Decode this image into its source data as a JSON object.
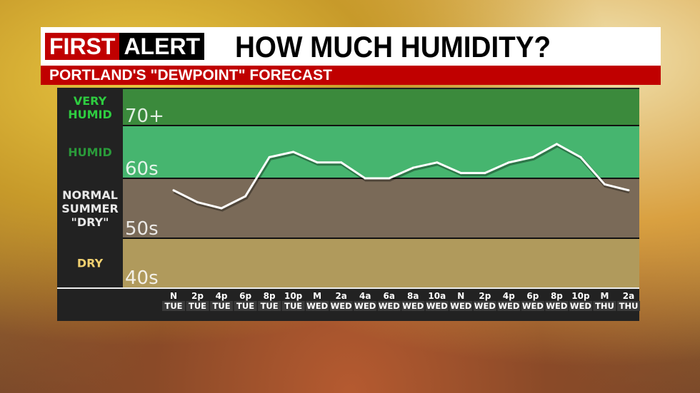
{
  "header": {
    "logo_first": "FIRST",
    "logo_alert": "ALERT",
    "title": "HOW MUCH HUMIDITY?",
    "subtitle": "PORTLAND'S \"DEWPOINT\" FORECAST"
  },
  "colors": {
    "very_humid": "#3b8a3c",
    "humid": "#46b56f",
    "normal": "#7a6a58",
    "dry": "#b09a5c",
    "line": "#ffffff",
    "red": "#c00000"
  },
  "chart_data": {
    "type": "line",
    "title": "HOW MUCH HUMIDITY?",
    "ylabel": "",
    "bands": [
      {
        "category": "VERY HUMID",
        "range_label": "70+",
        "min": 70,
        "max": 80,
        "color": "#3b8a3c",
        "label_color": "#2ecc40"
      },
      {
        "category": "HUMID",
        "range_label": "60s",
        "min": 60,
        "max": 70,
        "color": "#46b56f",
        "label_color": "#2a9a3a"
      },
      {
        "category": "NORMAL SUMMER \"DRY\"",
        "range_label": "50s",
        "min": 50,
        "max": 60,
        "color": "#7a6a58",
        "label_color": "#e8e8e8"
      },
      {
        "category": "DRY",
        "range_label": "40s",
        "min": 40,
        "max": 50,
        "color": "#b09a5c",
        "label_color": "#f0d070"
      }
    ],
    "x_time": [
      "N",
      "2p",
      "4p",
      "6p",
      "8p",
      "10p",
      "M",
      "2a",
      "4a",
      "6a",
      "8a",
      "10a",
      "N",
      "2p",
      "4p",
      "6p",
      "8p",
      "10p",
      "M",
      "2a"
    ],
    "x_day": [
      "TUE",
      "TUE",
      "TUE",
      "TUE",
      "TUE",
      "TUE",
      "WED",
      "WED",
      "WED",
      "WED",
      "WED",
      "WED",
      "WED",
      "WED",
      "WED",
      "WED",
      "WED",
      "WED",
      "THU",
      "THU"
    ],
    "values": [
      58,
      56,
      55,
      57,
      64,
      65,
      63,
      63,
      60,
      60,
      62,
      63,
      61,
      61,
      63,
      64,
      66.5,
      64,
      59,
      58
    ],
    "ylim": [
      40,
      80
    ]
  }
}
